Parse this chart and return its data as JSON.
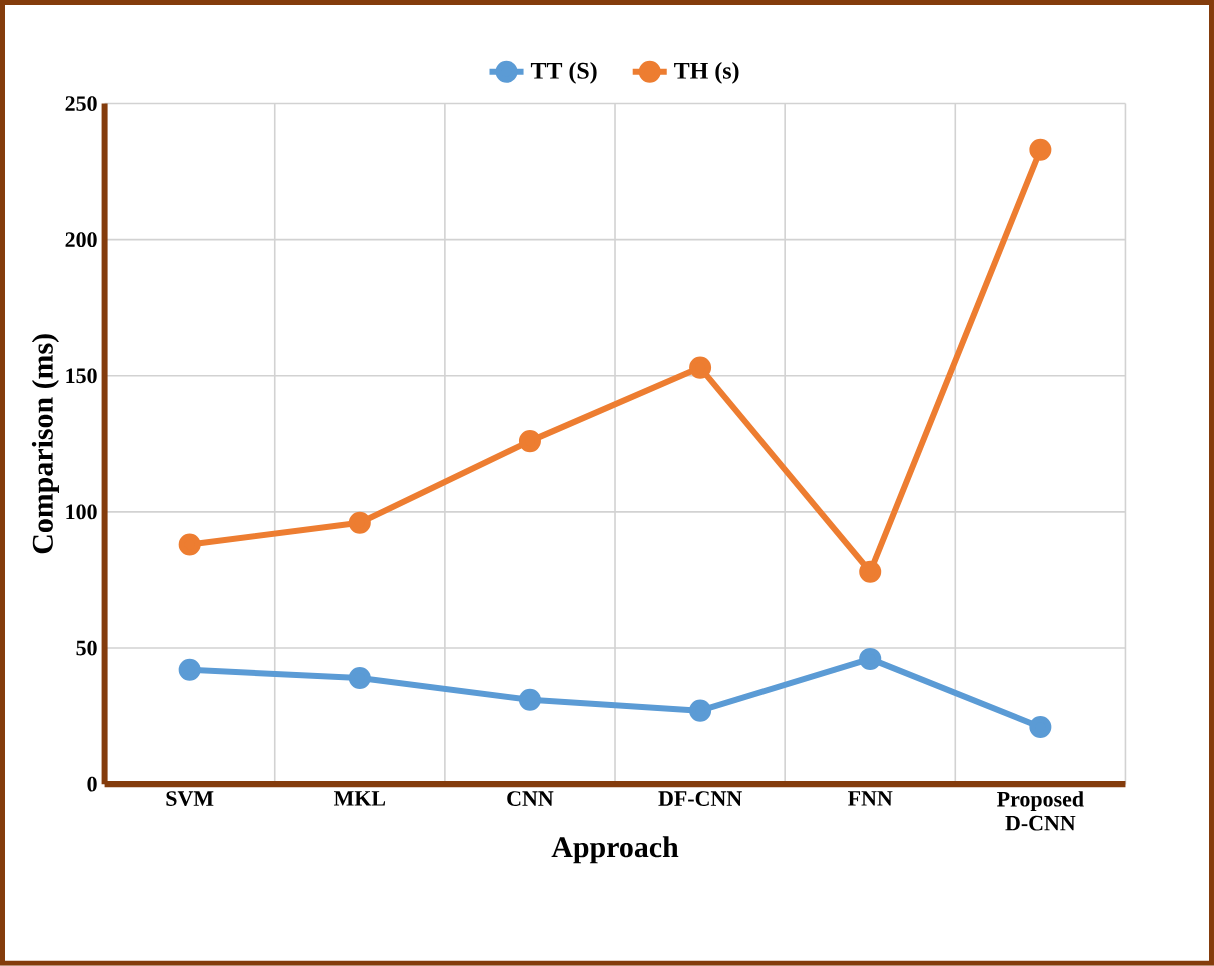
{
  "chart_data": {
    "type": "line",
    "xlabel": "Approach",
    "ylabel": "Comparison (ms)",
    "categories": [
      "SVM",
      "MKL",
      "CNN",
      "DF-CNN",
      "FNN",
      "Proposed D-CNN"
    ],
    "series": [
      {
        "name": "TT (S)",
        "color": "#5b9bd5",
        "values": [
          42,
          39,
          31,
          27,
          46,
          21
        ]
      },
      {
        "name": "TH (s)",
        "color": "#ed7d31",
        "values": [
          88,
          96,
          126,
          153,
          78,
          233
        ]
      }
    ],
    "ylim": [
      0,
      250
    ],
    "yticks": [
      0,
      50,
      100,
      150,
      200,
      250
    ],
    "grid": true,
    "legend": "top",
    "marker": "circle",
    "line_style": "solid"
  }
}
